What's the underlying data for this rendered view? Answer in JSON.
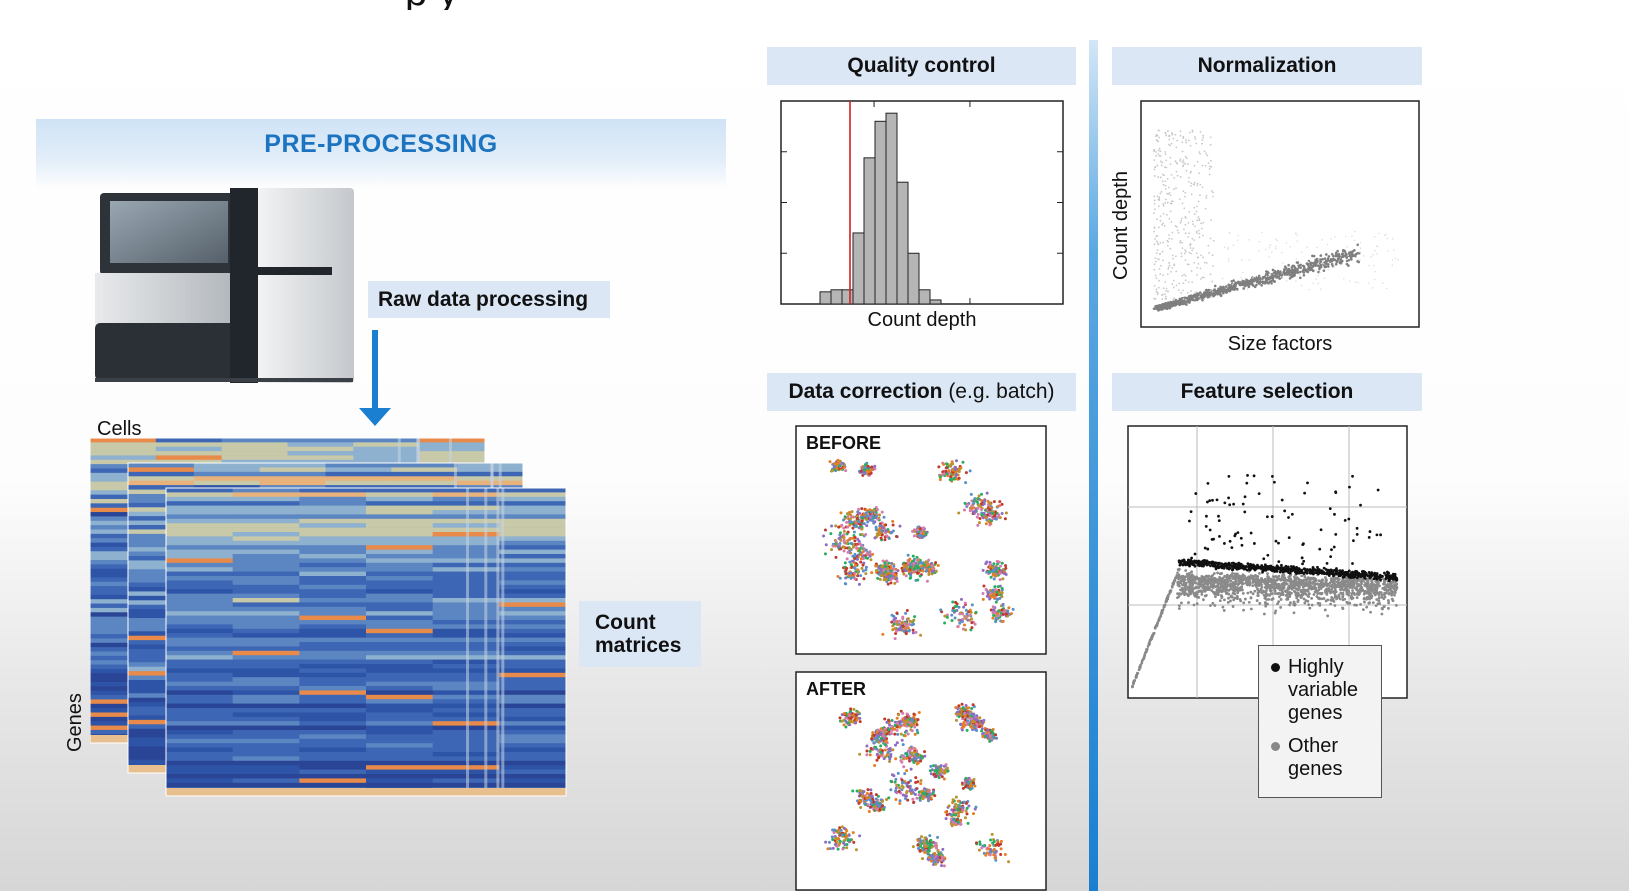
{
  "preprocessing": {
    "title": "PRE-PROCESSING",
    "raw_data_label": "Raw data processing",
    "count_matrices_label": [
      "Count",
      "matrices"
    ],
    "cells_label": "Cells",
    "genes_label": "Genes"
  },
  "panels": {
    "quality_control": {
      "title": "Quality control",
      "xlabel": "Count depth"
    },
    "normalization": {
      "title": "Normalization",
      "xlabel": "Size factors",
      "ylabel": "Count depth"
    },
    "data_correction": {
      "title_bold": "Data correction",
      "title_rest": " (e.g. batch)",
      "before_label": "BEFORE",
      "after_label": "AFTER"
    },
    "feature_selection": {
      "title": "Feature selection",
      "legend": {
        "highly_variable": [
          "Highly",
          "variable",
          "genes"
        ],
        "other": [
          "Other",
          "genes"
        ]
      }
    }
  },
  "colors": {
    "accent_blue": "#1c73bf",
    "label_bg": "#dbe7f5",
    "qc_threshold": "#cc2222",
    "highly_variable": "#111111",
    "other_genes": "#888888",
    "heatmap_base": "#2e4fa0"
  },
  "chart_data": [
    {
      "type": "bar",
      "role": "quality-control-histogram",
      "xlabel": "Count depth",
      "ylabel": "",
      "values": [
        0.06,
        0.07,
        0.07,
        0.35,
        0.72,
        0.9,
        0.94,
        0.6,
        0.25,
        0.07,
        0.02
      ],
      "threshold_marker": "red vertical line left of histogram peak"
    }
  ]
}
